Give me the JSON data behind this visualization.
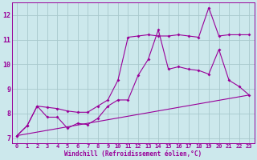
{
  "background_color": "#cce8ec",
  "grid_color": "#a8c8cc",
  "line_color": "#990099",
  "xlabel": "Windchill (Refroidissement éolien,°C)",
  "ylim": [
    6.8,
    12.5
  ],
  "xlim": [
    -0.5,
    23.5
  ],
  "yticks": [
    7,
    8,
    9,
    10,
    11,
    12
  ],
  "xticks": [
    0,
    1,
    2,
    3,
    4,
    5,
    6,
    7,
    8,
    9,
    10,
    11,
    12,
    13,
    14,
    15,
    16,
    17,
    18,
    19,
    20,
    21,
    22,
    23
  ],
  "series1_x": [
    0,
    1,
    2,
    3,
    4,
    5,
    6,
    7,
    8,
    9,
    10,
    11,
    12,
    13,
    14,
    15,
    16,
    17,
    18,
    19,
    20,
    21,
    22,
    23
  ],
  "series1_y": [
    7.1,
    7.5,
    8.3,
    7.85,
    7.85,
    7.4,
    7.6,
    7.55,
    7.8,
    8.3,
    8.55,
    8.55,
    9.55,
    10.2,
    11.4,
    9.8,
    9.9,
    9.8,
    9.75,
    9.6,
    10.6,
    9.35,
    9.1,
    8.75
  ],
  "series2_x": [
    0,
    1,
    2,
    3,
    4,
    5,
    6,
    7,
    8,
    9,
    10,
    11,
    12,
    13,
    14,
    15,
    16,
    17,
    18,
    19,
    20,
    21,
    22,
    23
  ],
  "series2_y": [
    7.1,
    7.5,
    8.3,
    8.25,
    8.2,
    8.1,
    8.05,
    8.05,
    8.3,
    8.55,
    9.35,
    11.1,
    11.15,
    11.2,
    11.15,
    11.15,
    11.2,
    11.15,
    11.1,
    12.3,
    11.15,
    11.2,
    11.2,
    11.2
  ],
  "series3_x": [
    0,
    23
  ],
  "series3_y": [
    7.1,
    8.75
  ]
}
